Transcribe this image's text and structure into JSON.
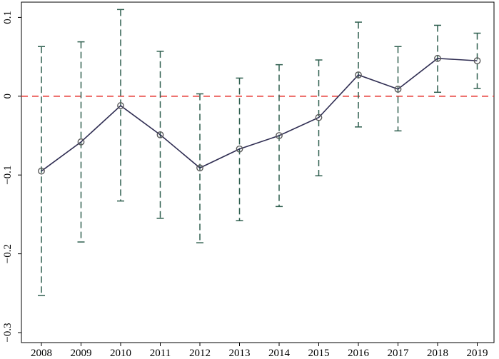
{
  "chart_data": {
    "type": "line",
    "title": "",
    "xlabel": "",
    "ylabel": "",
    "categories": [
      "2008",
      "2009",
      "2010",
      "2011",
      "2012",
      "2013",
      "2014",
      "2015",
      "2016",
      "2017",
      "2018",
      "2019"
    ],
    "series": [
      {
        "values": [
          -0.095,
          -0.058,
          -0.012,
          -0.049,
          -0.091,
          -0.067,
          -0.05,
          -0.027,
          0.027,
          0.009,
          0.048,
          0.045
        ],
        "ci_lower": [
          -0.253,
          -0.185,
          -0.133,
          -0.155,
          -0.186,
          -0.158,
          -0.14,
          -0.101,
          -0.039,
          -0.044,
          0.005,
          0.01
        ],
        "ci_upper": [
          0.063,
          0.069,
          0.11,
          0.057,
          0.003,
          0.023,
          0.04,
          0.046,
          0.094,
          0.063,
          0.09,
          0.08
        ]
      }
    ],
    "ylim": [
      -0.3,
      0.1
    ],
    "yticks": [
      -0.3,
      -0.2,
      -0.1,
      0,
      0.1
    ],
    "ytick_labels": [
      "−0.3",
      "−0.2",
      "−0.1",
      "0",
      "0.1"
    ],
    "reference_line": 0,
    "grid": false,
    "legend": "none",
    "colors": {
      "line": "#2f2d52",
      "marker": "#5a5a5a",
      "error_bar": "#2f5f4f",
      "reference_line": "#e8413c",
      "axis": "#000000"
    }
  }
}
